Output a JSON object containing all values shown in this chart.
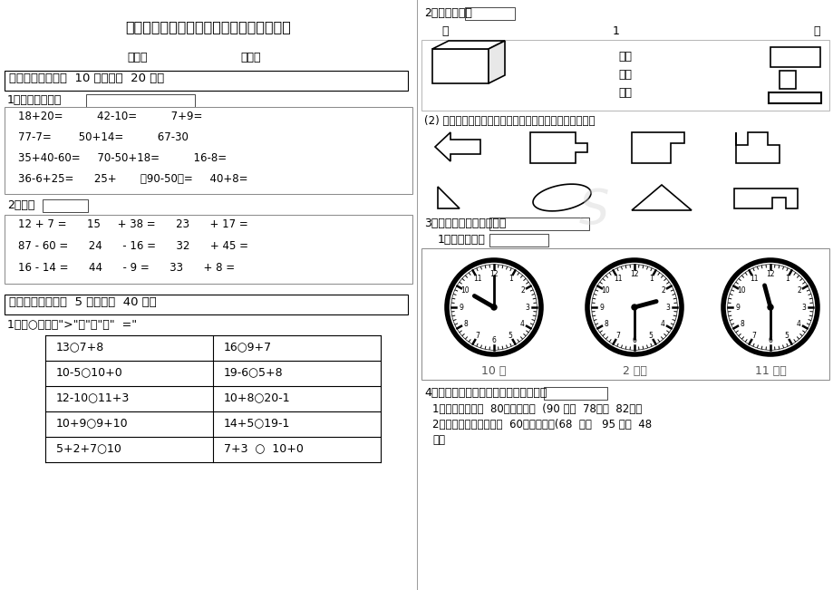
{
  "title": "人教版小学一年级数学下册期末测试试题五",
  "left_panel": {
    "section1_header": "一、填空题（每题  10 分，共计  20 分）",
    "section1_q1_label": "1、直接写得数。",
    "section1_q1_lines": [
      "18+20=          42-10=          7+9=",
      "77-7=        50+14=          67-30",
      "35+40-60=     70-50+18=          16-8=",
      "36-6+25=      25+       （90-50）=     40+8="
    ],
    "section1_q2_label": "2、口算",
    "section1_q2_lines": [
      "12 + 7 =      15     + 38 =      23      + 17 =",
      "87 - 60 =      24      - 16 =      32      + 45 =",
      "16 - 14 =      44      - 9 =      33      + 8 ="
    ],
    "section2_header": "二、混合题（每题  5 分，共计  40 分）",
    "section2_q1_label": "1、在○里填上\">\"、\"＜\"或\"  =\"",
    "table_rows": [
      [
        "13○7+8",
        "16○9+7"
      ],
      [
        "10-5○10+0",
        "19-6○5+8"
      ],
      [
        "12-10○11+3",
        "10+8○20-1"
      ],
      [
        "10+9○9+10",
        "14+5○19-1"
      ],
      [
        "5+2+7○10",
        "7+3  ○  10+0"
      ]
    ]
  },
  "right_panel": {
    "section2_q2_label": "2、我会连线。",
    "right_labels": [
      "右面",
      "下面",
      "后面"
    ],
    "section2_q2_sub": "(2) 下面的一块是从上面哪一块中剪下来的，用线连一连。",
    "section3_label": "3、请你画出时针或分针。",
    "section3_sub": "1、画出时针。",
    "clocks": [
      {
        "label": "10 时",
        "hour": 10,
        "minute": 0
      },
      {
        "label": "2 时半",
        "hour": 2,
        "minute": 30
      },
      {
        "label": "11 时半",
        "hour": 11,
        "minute": 30
      }
    ],
    "section4_label": "4、按要求将你认为合适的答案圈起来。",
    "section4_lines": [
      "1、书包的价钱比  80元少一些。  (90 元、  78元、  82元）",
      "2、玩具小汽车的价钱比  60元贵多了！(68  元、   95 元、  48",
      "元）"
    ]
  }
}
